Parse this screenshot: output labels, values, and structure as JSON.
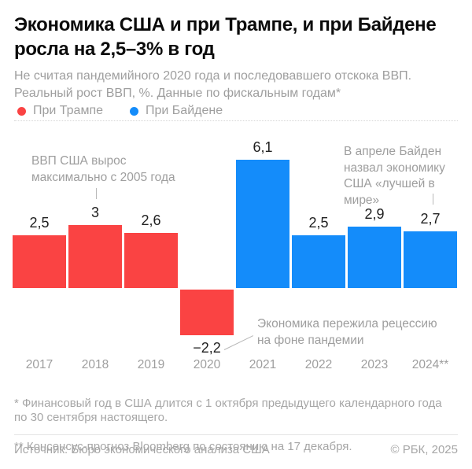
{
  "title": "Экономика США и при Трампе, и при Байдене\nросла на 2,5–3% в год",
  "subtitle": "Не считая пандемийного 2020 года и последовавшего отскока ВВП.\nРеальный рост ВВП, %. Данные по фискальным годам*",
  "legend": {
    "trump": {
      "label": "При Трампе",
      "color": "#FA4343"
    },
    "biden": {
      "label": "При Байдене",
      "color": "#148CFA"
    }
  },
  "chart_data": {
    "type": "bar",
    "title": "Реальный рост ВВП США, %, по фискальным годам",
    "categories": [
      "2017",
      "2018",
      "2019",
      "2020",
      "2021",
      "2022",
      "2023",
      "2024**"
    ],
    "values": [
      2.5,
      3,
      2.6,
      -2.2,
      6.1,
      2.5,
      2.9,
      2.7
    ],
    "value_labels": [
      "2,5",
      "3",
      "2,6",
      "−2,2",
      "6,1",
      "2,5",
      "2,9",
      "2,7"
    ],
    "series_by_bar": [
      "trump",
      "trump",
      "trump",
      "trump",
      "biden",
      "biden",
      "biden",
      "biden"
    ],
    "series": [
      {
        "name": "При Трампе",
        "color": "#FA4343",
        "years": [
          "2017",
          "2018",
          "2019",
          "2020"
        ],
        "values": [
          2.5,
          3,
          2.6,
          -2.2
        ]
      },
      {
        "name": "При Байдене",
        "color": "#148CFA",
        "years": [
          "2021",
          "2022",
          "2023",
          "2024**"
        ],
        "values": [
          6.1,
          2.5,
          2.9,
          2.7
        ]
      }
    ],
    "xlabel": "",
    "ylabel": "Реальный рост ВВП, %",
    "ylim": [
      -2.6,
      6.6
    ],
    "grid": false,
    "legend_position": "top-left",
    "annotations": [
      {
        "target": "2018",
        "text": "ВВП США вырос максимально с 2005 года"
      },
      {
        "target": "2020",
        "text": "Экономика пережила рецессию на фоне пандемии"
      },
      {
        "target": "2024**",
        "text": "В апреле Байден назвал экономику США «лучшей в мире»"
      }
    ]
  },
  "annotations": {
    "gdp_max": "ВВП США вырос\nмаксимально с 2005 года",
    "biden_quote": "В апреле Байден\nназвал экономику\nСША «лучшей в мире»",
    "recession": "Экономика пережила рецессию\nна фоне пандемии"
  },
  "footnotes": [
    "* Финансовый год в США длится с 1 октября предыдущего календарного года\nпо 30 сентября настоящего.",
    "** Консенсус-прогноз Bloomberg по состоянию на 17 декабря."
  ],
  "source": "Источник: Бюро экономического анализа США",
  "copyright": "© РБК, 2025"
}
